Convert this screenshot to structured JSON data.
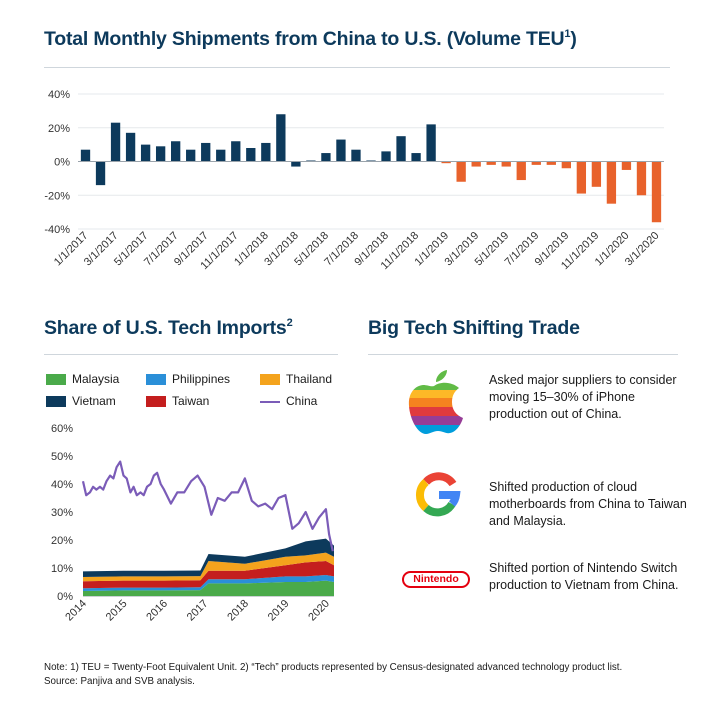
{
  "colors": {
    "navy": "#0d3a5c",
    "orange": "#e8622c",
    "malaysia": "#4aaa4a",
    "philippines": "#2a8fd8",
    "thailand": "#f4a31d",
    "vietnam": "#0d3a5c",
    "taiwan": "#c41e1e",
    "china": "#7b5cb8"
  },
  "chart1": {
    "title": "Total Monthly Shipments from China to U.S. (Volume TEU",
    "title_sup": "1",
    "title_end": ")"
  },
  "chart2": {
    "title": "Share of U.S. Tech Imports",
    "title_sup": "2"
  },
  "bigtech": {
    "title": "Big Tech Shifting Trade",
    "items": [
      {
        "icon": "apple-logo-icon",
        "text": "Asked major suppliers to consider moving 15–30% of iPhone production out of China."
      },
      {
        "icon": "google-logo-icon",
        "text": "Shifted production of cloud motherboards from China to Taiwan and Malaysia."
      },
      {
        "icon": "nintendo-logo-icon",
        "logo_text": "Nintendo",
        "text": "Shifted portion of Nintendo Switch production to Vietnam from China."
      }
    ]
  },
  "notes": {
    "line1": "Note:  1) TEU = Twenty-Foot Equivalent Unit. 2) “Tech” products represented by Census-designated advanced technology product list.",
    "line2": "Source: Panjiva and SVB analysis."
  },
  "chart_data": [
    {
      "type": "bar",
      "title": "Total Monthly Shipments from China to U.S. (Volume TEU1)",
      "ylim": [
        -40,
        40
      ],
      "yticks": [
        "40%",
        "20%",
        "0%",
        "-20%",
        "-40%"
      ],
      "ytick_values": [
        40,
        20,
        0,
        -20,
        -40
      ],
      "xtick_labels": [
        "1/1/2017",
        "3/1/2017",
        "5/1/2017",
        "7/1/2017",
        "9/1/2017",
        "11/1/2017",
        "1/1/2018",
        "3/1/2018",
        "5/1/2018",
        "7/1/2018",
        "9/1/2018",
        "11/1/2018",
        "1/1/2019",
        "3/1/2019",
        "5/1/2019",
        "7/1/2019",
        "9/1/2019",
        "11/1/2019",
        "1/1/2020",
        "3/1/2020"
      ],
      "values": [
        7,
        -14,
        23,
        17,
        10,
        9,
        12,
        7,
        11,
        7,
        12,
        8,
        11,
        28,
        -3,
        0,
        5,
        13,
        7,
        0,
        6,
        15,
        5,
        22,
        -1,
        -12,
        -3,
        -2,
        -3,
        -11,
        -2,
        -2,
        -4,
        -19,
        -15,
        -25,
        -5,
        -20,
        -36
      ]
    },
    {
      "type": "area",
      "title": "Share of U.S. Tech Imports2",
      "ylim": [
        0,
        60
      ],
      "yticks": [
        "60%",
        "50%",
        "40%",
        "30%",
        "20%",
        "10%",
        "0%"
      ],
      "ytick_values": [
        60,
        50,
        40,
        30,
        20,
        10,
        0
      ],
      "x_labels": [
        "2014",
        "2015",
        "2016",
        "2017",
        "2018",
        "2019",
        "2020"
      ],
      "x_label_values": [
        2014,
        2015,
        2016,
        2017,
        2018,
        2019,
        2020
      ],
      "series": [
        {
          "name": "Malaysia",
          "x": [
            2014,
            2015,
            2016,
            2016.9,
            2017.1,
            2018,
            2019,
            2019.5,
            2020,
            2020.2
          ],
          "values": [
            1.8,
            2,
            2,
            2.1,
            4.5,
            4.5,
            5,
            5,
            5.5,
            5
          ]
        },
        {
          "name": "Philippines",
          "x": [
            2014,
            2015,
            2016,
            2016.9,
            2017.1,
            2018,
            2019,
            2019.5,
            2020,
            2020.2
          ],
          "values": [
            1,
            1,
            1,
            1,
            1.5,
            1.5,
            2,
            2,
            2,
            2
          ]
        },
        {
          "name": "Taiwan",
          "x": [
            2014,
            2015,
            2016,
            2016.9,
            2017.1,
            2018,
            2019,
            2019.5,
            2020,
            2020.2
          ],
          "values": [
            2.5,
            2.5,
            2.5,
            2.5,
            3,
            3,
            4,
            5,
            5,
            4
          ]
        },
        {
          "name": "Thailand",
          "x": [
            2014,
            2015,
            2016,
            2016.9,
            2017.1,
            2018,
            2019,
            2019.5,
            2020,
            2020.2
          ],
          "values": [
            1.5,
            1.5,
            1.5,
            1.5,
            3.5,
            2.5,
            3,
            2.5,
            3,
            3
          ]
        },
        {
          "name": "Vietnam",
          "x": [
            2014,
            2015,
            2016,
            2016.9,
            2017.1,
            2018,
            2019,
            2019.5,
            2020,
            2020.2
          ],
          "values": [
            2,
            2,
            2,
            2,
            2.5,
            2.5,
            3,
            5,
            5,
            4
          ]
        },
        {
          "name": "China",
          "x": [
            2014,
            2014.08,
            2014.17,
            2014.25,
            2014.33,
            2014.42,
            2014.5,
            2014.58,
            2014.67,
            2014.75,
            2014.83,
            2014.92,
            2015,
            2015.08,
            2015.17,
            2015.25,
            2015.33,
            2015.42,
            2015.5,
            2015.58,
            2015.67,
            2015.75,
            2015.83,
            2015.92,
            2016,
            2016.17,
            2016.33,
            2016.5,
            2016.67,
            2016.83,
            2017,
            2017.17,
            2017.33,
            2017.5,
            2017.67,
            2017.83,
            2018,
            2018.17,
            2018.33,
            2018.5,
            2018.67,
            2018.83,
            2019,
            2019.17,
            2019.33,
            2019.5,
            2019.67,
            2019.83,
            2020,
            2020.08,
            2020.17
          ],
          "values": [
            41,
            36,
            37,
            39,
            38,
            39,
            38,
            41,
            43,
            42,
            46,
            48,
            43,
            42,
            37,
            39,
            36,
            37,
            36,
            39,
            40,
            43,
            44,
            40,
            38,
            33,
            37,
            37,
            41,
            43,
            39,
            29,
            35,
            34,
            37,
            37,
            42,
            34,
            32,
            33,
            31,
            35,
            36,
            24,
            26,
            30,
            24,
            28,
            31,
            22,
            16
          ]
        }
      ]
    }
  ]
}
